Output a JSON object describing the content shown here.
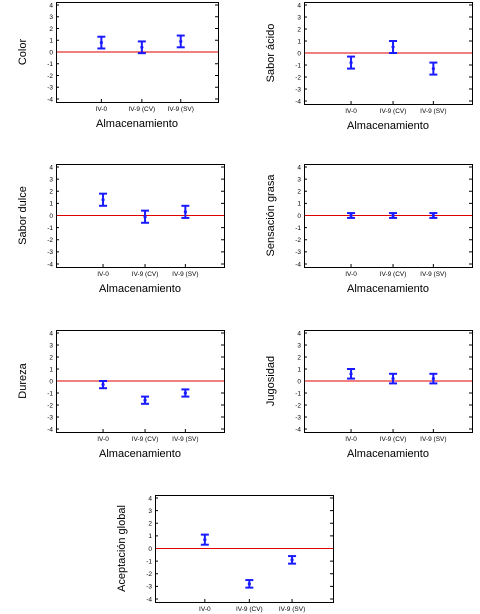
{
  "chart_data": [
    {
      "type": "errorbar",
      "ylabel": "Color",
      "xlabel": "Almacenamiento",
      "categories": [
        "IV-0",
        "IV-9 (CV)",
        "IV-9 (SV)"
      ],
      "ylim": [
        -4,
        4
      ],
      "yticks": [
        "4",
        "3",
        "2",
        "1",
        "0",
        "-1",
        "-2",
        "-3",
        "-4"
      ],
      "reference_line": 0,
      "means": [
        0.8,
        0.4,
        0.9
      ],
      "lower": [
        0.3,
        -0.1,
        0.4
      ],
      "upper": [
        1.3,
        0.9,
        1.4
      ]
    },
    {
      "type": "errorbar",
      "ylabel": "Sabor ácido",
      "xlabel": "Almacenamiento",
      "categories": [
        "IV-0",
        "IV-9 (CV)",
        "IV-9 (SV)"
      ],
      "ylim": [
        -4,
        4
      ],
      "yticks": [
        "4",
        "3",
        "2",
        "1",
        "0",
        "-1",
        "-2",
        "-3",
        "-4"
      ],
      "reference_line": 0,
      "means": [
        -0.8,
        0.5,
        -1.3
      ],
      "lower": [
        -1.3,
        0.0,
        -1.8
      ],
      "upper": [
        -0.3,
        1.0,
        -0.8
      ]
    },
    {
      "type": "errorbar",
      "ylabel": "Sabor dulce",
      "xlabel": "Almacenamiento",
      "categories": [
        "IV-0",
        "IV-9 (CV)",
        "IV-9 (SV)"
      ],
      "ylim": [
        -4,
        4
      ],
      "yticks": [
        "4",
        "3",
        "2",
        "1",
        "0",
        "-1",
        "-2",
        "-3",
        "-4"
      ],
      "reference_line": 0,
      "means": [
        1.3,
        -0.1,
        0.3
      ],
      "lower": [
        0.8,
        -0.6,
        -0.2
      ],
      "upper": [
        1.8,
        0.4,
        0.8
      ]
    },
    {
      "type": "errorbar",
      "ylabel": "Sensación grasa",
      "xlabel": "Almacenamiento",
      "categories": [
        "IV-0",
        "IV-9 (CV)",
        "IV-9 (SV)"
      ],
      "ylim": [
        -4,
        4
      ],
      "yticks": [
        "4",
        "3",
        "2",
        "1",
        "0",
        "-1",
        "-2",
        "-3",
        "-4"
      ],
      "reference_line": 0,
      "means": [
        0.0,
        0.0,
        0.0
      ],
      "lower": [
        -0.2,
        -0.2,
        -0.2
      ],
      "upper": [
        0.2,
        0.2,
        0.2
      ]
    },
    {
      "type": "errorbar",
      "ylabel": "Dureza",
      "xlabel": "Almacenamiento",
      "categories": [
        "IV-0",
        "IV-9 (CV)",
        "IV-9 (SV)"
      ],
      "ylim": [
        -4,
        4
      ],
      "yticks": [
        "4",
        "3",
        "2",
        "1",
        "0",
        "-1",
        "-2",
        "-3",
        "-4"
      ],
      "reference_line": 0,
      "means": [
        -0.3,
        -1.6,
        -1.0
      ],
      "lower": [
        -0.6,
        -1.9,
        -1.3
      ],
      "upper": [
        0.0,
        -1.3,
        -0.7
      ]
    },
    {
      "type": "errorbar",
      "ylabel": "Jugosidad",
      "xlabel": "Almacenamiento",
      "categories": [
        "IV-0",
        "IV-9 (CV)",
        "IV-9 (SV)"
      ],
      "ylim": [
        -4,
        4
      ],
      "yticks": [
        "4",
        "3",
        "2",
        "1",
        "0",
        "-1",
        "-2",
        "-3",
        "-4"
      ],
      "reference_line": 0,
      "means": [
        0.6,
        0.2,
        0.2
      ],
      "lower": [
        0.2,
        -0.2,
        -0.2
      ],
      "upper": [
        1.0,
        0.6,
        0.6
      ]
    },
    {
      "type": "errorbar",
      "ylabel": "Aceptación global",
      "xlabel": "",
      "categories": [
        "IV-0",
        "IV-9 (CV)",
        "IV-9 (SV)"
      ],
      "ylim": [
        -4,
        4
      ],
      "yticks": [
        "4",
        "3",
        "2",
        "1",
        "0",
        "-1",
        "-2",
        "-3",
        "-4"
      ],
      "reference_line": 0,
      "means": [
        0.7,
        -2.8,
        -0.9
      ],
      "lower": [
        0.3,
        -3.1,
        -1.2
      ],
      "upper": [
        1.1,
        -2.5,
        -0.6
      ]
    }
  ],
  "colors": {
    "error_bars": "#1a1aff",
    "reference_line": "#e00000"
  }
}
